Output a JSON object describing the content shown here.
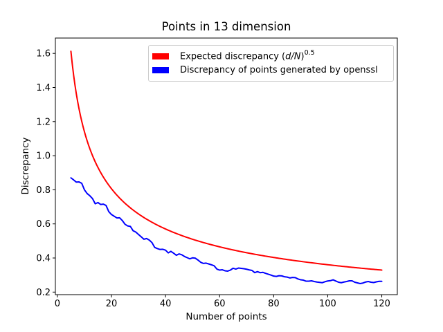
{
  "figure": {
    "background": "#ffffff",
    "axis_color": "#000000"
  },
  "chart_data": {
    "type": "line",
    "title": "Points in 13 dimension",
    "xlabel": "Number of points",
    "ylabel": "Discrepancy",
    "xlim": [
      -0.75,
      125.75
    ],
    "ylim": [
      0.185,
      1.69
    ],
    "xticks": [
      0,
      20,
      40,
      60,
      80,
      100,
      120
    ],
    "yticks": [
      0.2,
      0.4,
      0.6,
      0.8,
      1.0,
      1.2,
      1.4,
      1.6
    ],
    "grid": false,
    "legend_position": "upper center",
    "series": [
      {
        "name": "Expected discrepancy (d/N)^0.5",
        "color": "#ff0000",
        "line_width": 2,
        "type": "formula",
        "formula": "sqrt(d/N)",
        "d": 13,
        "x_start": 5,
        "x_end": 120,
        "sample_values": {
          "5": 1.612,
          "10": 1.14,
          "20": 0.806,
          "40": 0.57,
          "60": 0.465,
          "80": 0.403,
          "100": 0.361,
          "120": 0.329
        }
      },
      {
        "name": "Discrepancy of points generated by openssl",
        "color": "#0000ff",
        "line_width": 2,
        "type": "values",
        "x_start": 5,
        "x_step": 1,
        "values": [
          0.87,
          0.858,
          0.845,
          0.846,
          0.838,
          0.8,
          0.778,
          0.765,
          0.748,
          0.718,
          0.725,
          0.714,
          0.716,
          0.708,
          0.672,
          0.655,
          0.645,
          0.635,
          0.636,
          0.62,
          0.598,
          0.588,
          0.585,
          0.56,
          0.552,
          0.538,
          0.524,
          0.51,
          0.514,
          0.505,
          0.49,
          0.462,
          0.455,
          0.45,
          0.451,
          0.446,
          0.43,
          0.439,
          0.428,
          0.416,
          0.424,
          0.419,
          0.409,
          0.402,
          0.395,
          0.401,
          0.399,
          0.388,
          0.375,
          0.368,
          0.37,
          0.365,
          0.36,
          0.354,
          0.335,
          0.329,
          0.331,
          0.325,
          0.323,
          0.329,
          0.34,
          0.335,
          0.341,
          0.339,
          0.337,
          0.334,
          0.33,
          0.327,
          0.314,
          0.32,
          0.314,
          0.316,
          0.31,
          0.305,
          0.3,
          0.294,
          0.292,
          0.296,
          0.295,
          0.29,
          0.288,
          0.283,
          0.286,
          0.285,
          0.277,
          0.272,
          0.27,
          0.264,
          0.264,
          0.266,
          0.262,
          0.259,
          0.257,
          0.255,
          0.261,
          0.265,
          0.267,
          0.272,
          0.265,
          0.258,
          0.255,
          0.259,
          0.262,
          0.266,
          0.266,
          0.258,
          0.254,
          0.25,
          0.253,
          0.259,
          0.262,
          0.258,
          0.256,
          0.26,
          0.263,
          0.263
        ]
      }
    ]
  },
  "legend": {
    "entries": [
      {
        "label_prefix": "Expected discrepancy (",
        "label_math": "d/N",
        "label_close": ")",
        "label_sup": "0.5",
        "color": "#ff0000"
      },
      {
        "label": "Discrepancy of points generated by openssl",
        "color": "#0000ff"
      }
    ]
  }
}
